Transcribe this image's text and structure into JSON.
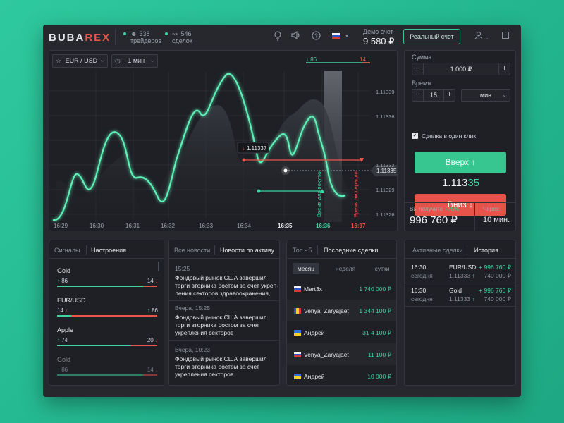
{
  "header": {
    "logo_part1": "BUBA",
    "logo_part2": "REX",
    "traders_count": "338",
    "traders_label": "трейдеров",
    "deals_count": "546",
    "deals_label": "сделок",
    "demo_label": "Демо счет",
    "demo_value": "9 580 ₽",
    "real_account_label": "Реальный счет"
  },
  "chart": {
    "asset": "EUR / USD",
    "timeframe": "1 мин",
    "up_count": "86",
    "down_count": "14",
    "tooltip_price": "1.11337",
    "current_price": "1.11335",
    "buy_time_label": "Время для покупки",
    "expiry_label": "Время экспирации",
    "time_ticks": [
      "16:29",
      "16:30",
      "16:31",
      "16:32",
      "16:33",
      "16:34",
      "16:35",
      "16:36",
      "16:37"
    ],
    "price_ticks": [
      "1.11339",
      "1.11336",
      "1.11335",
      "1.11332",
      "1.11329",
      "1.11326"
    ]
  },
  "trade": {
    "sum_label": "Сумма",
    "sum_value": "1 000 ₽",
    "time_label": "Время",
    "time_value": "15",
    "time_unit": "мин",
    "one_click_label": "Сделка в один клик",
    "up_label": "Вверх",
    "price_main": "1.113",
    "price_tail": "35",
    "down_label": "Вниз",
    "receive_label": "Вы получите",
    "receive_percent": "+75%",
    "receive_value": "996 760 ₽",
    "through_label": "Через:",
    "through_value": "10 мин."
  },
  "signals": {
    "tab_signals": "Сигналы",
    "tab_settings": "Настроения",
    "items": [
      {
        "name": "Gold",
        "left": "86",
        "right": "14",
        "green": 0.86
      },
      {
        "name": "EUR/USD",
        "left": "14",
        "right": "86",
        "green": 0.14
      },
      {
        "name": "Apple",
        "left": "74",
        "right": "20",
        "green": 0.74
      },
      {
        "name": "Gold",
        "left": "86",
        "right": "14",
        "green": 0.86
      }
    ]
  },
  "news": {
    "tab_all": "Все новости",
    "tab_asset": "Новости по активу",
    "items": [
      {
        "time": "15:25",
        "text": "Фондовый рынок США завершил торги вторника ростом за счет укреп-ления секторов здравоохранения,"
      },
      {
        "time": "Вчера, 15:25",
        "text": "Фондовый рынок США завершил торги вторника ростом за счет укрепления секторов"
      },
      {
        "time": "Вчера, 10:23",
        "text": "Фондовый рынок США завершил торги вторника ростом за счет укрепления секторов"
      }
    ]
  },
  "top": {
    "tab_top": "Топ - 5",
    "tab_recent": "Последние сделки",
    "seg_month": "месяц",
    "seg_week": "неделя",
    "seg_day": "сутки",
    "rows": [
      {
        "name": "Mart3x",
        "amount": "1 740 000 ₽",
        "flag": "ru"
      },
      {
        "name": "Venya_Zaryajaet",
        "amount": "1 344 100 ₽",
        "flag": "ro"
      },
      {
        "name": "Андрей",
        "amount": "31 4 100 ₽",
        "flag": "ua"
      },
      {
        "name": "Venya_Zaryajaet",
        "amount": "11 100 ₽",
        "flag": "ru"
      },
      {
        "name": "Андрей",
        "amount": "10 000 ₽",
        "flag": "ua"
      }
    ]
  },
  "active": {
    "tab_active": "Активные сделки",
    "tab_history": "История",
    "rows": [
      {
        "time": "16:30",
        "day": "сегодня",
        "asset": "EUR/USD",
        "price": "1.11333",
        "profit": "+ 996 760 ₽",
        "stake": "740 000 ₽"
      },
      {
        "time": "16:30",
        "day": "сегодня",
        "asset": "Gold",
        "price": "1.11333",
        "profit": "+ 996 760 ₽",
        "stake": "740 000 ₽"
      }
    ]
  },
  "colors": {
    "green": "#3fd4a0",
    "red": "#e8554a",
    "bg": "#26282e"
  }
}
